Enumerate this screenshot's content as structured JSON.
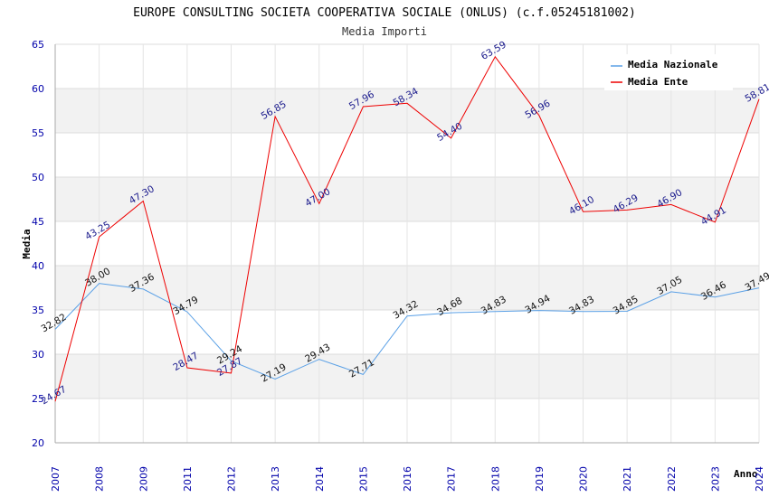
{
  "chart_data": {
    "type": "line",
    "title": "EUROPE CONSULTING SOCIETA COOPERATIVA SOCIALE (ONLUS) (c.f.05245181002)",
    "subtitle": "Media Importi",
    "xlabel": "Anno",
    "ylabel": "Media",
    "ylim": [
      20,
      65
    ],
    "yticks": [
      "20",
      "25",
      "30",
      "35",
      "40",
      "45",
      "50",
      "55",
      "60",
      "65"
    ],
    "categories": [
      "2007",
      "2008",
      "2009",
      "2011",
      "2012",
      "2013",
      "2014",
      "2015",
      "2016",
      "2017",
      "2018",
      "2019",
      "2020",
      "2021",
      "2022",
      "2023",
      "2024"
    ],
    "series": [
      {
        "name": "Media Nazionale",
        "color": "#5aa0e6",
        "values": [
          32.82,
          38.0,
          37.36,
          34.79,
          29.24,
          27.19,
          29.43,
          27.71,
          34.32,
          34.68,
          34.83,
          34.94,
          34.83,
          34.85,
          37.05,
          36.46,
          37.49
        ],
        "labels": [
          "32.82",
          "38.00",
          "37.36",
          "34.79",
          "29.24",
          "27.19",
          "29.43",
          "27.71",
          "34.32",
          "34.68",
          "34.83",
          "34.94",
          "34.83",
          "34.85",
          "37.05",
          "36.46",
          "37.49"
        ]
      },
      {
        "name": "Media Ente",
        "color": "#ee0000",
        "values": [
          24.67,
          43.25,
          47.3,
          28.47,
          27.87,
          56.85,
          47.0,
          57.96,
          58.34,
          54.4,
          63.59,
          56.96,
          46.1,
          46.29,
          46.9,
          44.91,
          58.81
        ],
        "labels": [
          "24.67",
          "43.25",
          "47.30",
          "28.47",
          "27.87",
          "56.85",
          "47.00",
          "57.96",
          "58.34",
          "54.40",
          "63.59",
          "56.96",
          "46.10",
          "46.29",
          "46.90",
          "44.91",
          "58.81"
        ]
      }
    ],
    "grid": true,
    "legend_position": "top-right"
  }
}
